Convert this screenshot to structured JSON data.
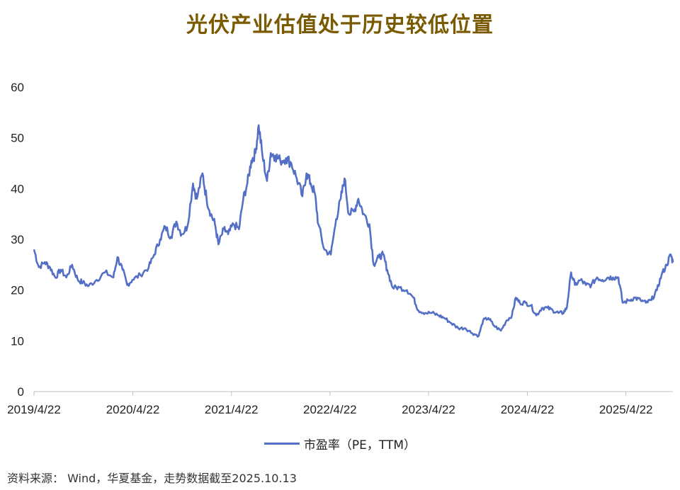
{
  "chart_data": {
    "type": "line",
    "title": "光伏产业估值处于历史较低位置",
    "xlabel": "",
    "ylabel": "",
    "ylim": [
      0,
      60
    ],
    "yticks": [
      0,
      10,
      20,
      30,
      40,
      50,
      60
    ],
    "xlim": [
      "2019-04-22",
      "2025-10-13"
    ],
    "xticks": [
      "2019/4/22",
      "2020/4/22",
      "2021/4/22",
      "2022/4/22",
      "2023/4/22",
      "2024/4/22",
      "2025/4/22"
    ],
    "grid": false,
    "legend": "bottom-center",
    "series": [
      {
        "name": "市盈率（PE，TTM）",
        "color": "#5470c6",
        "points": [
          [
            "2019-04-22",
            28
          ],
          [
            "2019-05-10",
            24.5
          ],
          [
            "2019-06-01",
            25.5
          ],
          [
            "2019-06-20",
            24.5
          ],
          [
            "2019-07-10",
            22.5
          ],
          [
            "2019-07-30",
            24
          ],
          [
            "2019-08-20",
            22.5
          ],
          [
            "2019-09-10",
            25
          ],
          [
            "2019-10-01",
            22
          ],
          [
            "2019-10-20",
            21.5
          ],
          [
            "2019-11-10",
            20.8
          ],
          [
            "2019-12-10",
            22
          ],
          [
            "2020-01-10",
            23.5
          ],
          [
            "2020-02-10",
            22.5
          ],
          [
            "2020-02-25",
            26.5
          ],
          [
            "2020-03-15",
            24
          ],
          [
            "2020-04-01",
            21
          ],
          [
            "2020-04-20",
            22
          ],
          [
            "2020-05-20",
            23
          ],
          [
            "2020-06-20",
            24.5
          ],
          [
            "2020-07-10",
            27
          ],
          [
            "2020-08-01",
            30
          ],
          [
            "2020-08-20",
            32.5
          ],
          [
            "2020-09-10",
            30.5
          ],
          [
            "2020-09-30",
            33.5
          ],
          [
            "2020-10-20",
            31
          ],
          [
            "2020-11-10",
            32.5
          ],
          [
            "2020-12-01",
            41
          ],
          [
            "2020-12-15",
            38
          ],
          [
            "2021-01-05",
            43
          ],
          [
            "2021-01-20",
            38
          ],
          [
            "2021-02-05",
            35
          ],
          [
            "2021-02-20",
            33
          ],
          [
            "2021-03-05",
            29
          ],
          [
            "2021-03-25",
            32
          ],
          [
            "2021-04-10",
            31
          ],
          [
            "2021-04-30",
            33
          ],
          [
            "2021-05-20",
            32
          ],
          [
            "2021-06-05",
            38
          ],
          [
            "2021-06-20",
            41
          ],
          [
            "2021-07-05",
            45.5
          ],
          [
            "2021-07-20",
            47
          ],
          [
            "2021-08-01",
            52.5
          ],
          [
            "2021-08-15",
            46.5
          ],
          [
            "2021-09-01",
            41.5
          ],
          [
            "2021-09-15",
            47
          ],
          [
            "2021-10-01",
            46.5
          ],
          [
            "2021-10-20",
            45.5
          ],
          [
            "2021-11-10",
            46
          ],
          [
            "2021-11-30",
            45
          ],
          [
            "2021-12-20",
            42
          ],
          [
            "2022-01-10",
            38.5
          ],
          [
            "2022-01-25",
            43
          ],
          [
            "2022-02-10",
            41
          ],
          [
            "2022-02-25",
            39
          ],
          [
            "2022-03-10",
            33
          ],
          [
            "2022-04-01",
            28
          ],
          [
            "2022-04-25",
            27
          ],
          [
            "2022-05-15",
            34
          ],
          [
            "2022-06-01",
            38
          ],
          [
            "2022-06-15",
            42
          ],
          [
            "2022-07-01",
            35
          ],
          [
            "2022-07-20",
            35.5
          ],
          [
            "2022-08-05",
            38
          ],
          [
            "2022-08-25",
            35
          ],
          [
            "2022-09-15",
            33
          ],
          [
            "2022-10-01",
            25
          ],
          [
            "2022-10-20",
            26.5
          ],
          [
            "2022-11-05",
            27
          ],
          [
            "2022-11-20",
            24
          ],
          [
            "2022-12-10",
            20.5
          ],
          [
            "2023-01-05",
            20.5
          ],
          [
            "2023-02-01",
            20
          ],
          [
            "2023-02-25",
            18.5
          ],
          [
            "2023-03-15",
            16
          ],
          [
            "2023-04-10",
            15.5
          ],
          [
            "2023-05-05",
            15.5
          ],
          [
            "2023-05-30",
            15
          ],
          [
            "2023-06-20",
            14.5
          ],
          [
            "2023-07-15",
            13.5
          ],
          [
            "2023-08-10",
            12.5
          ],
          [
            "2023-09-05",
            12.5
          ],
          [
            "2023-10-01",
            11.5
          ],
          [
            "2023-10-25",
            11
          ],
          [
            "2023-11-10",
            14
          ],
          [
            "2023-11-30",
            14.5
          ],
          [
            "2023-12-20",
            13
          ],
          [
            "2024-01-15",
            12
          ],
          [
            "2024-02-05",
            14
          ],
          [
            "2024-02-25",
            15
          ],
          [
            "2024-03-10",
            18.5
          ],
          [
            "2024-03-25",
            17.5
          ],
          [
            "2024-04-15",
            17.5
          ],
          [
            "2024-05-05",
            17
          ],
          [
            "2024-05-25",
            15
          ],
          [
            "2024-06-15",
            16.5
          ],
          [
            "2024-07-05",
            16.5
          ],
          [
            "2024-07-25",
            16
          ],
          [
            "2024-08-15",
            15.5
          ],
          [
            "2024-09-01",
            15.5
          ],
          [
            "2024-09-15",
            16.5
          ],
          [
            "2024-10-01",
            23.5
          ],
          [
            "2024-10-15",
            21
          ],
          [
            "2024-11-05",
            22
          ],
          [
            "2024-11-25",
            21
          ],
          [
            "2024-12-15",
            21
          ],
          [
            "2025-01-05",
            22.5
          ],
          [
            "2025-01-25",
            22
          ],
          [
            "2025-02-15",
            22.5
          ],
          [
            "2025-03-05",
            22.5
          ],
          [
            "2025-03-25",
            22.5
          ],
          [
            "2025-04-10",
            17.5
          ],
          [
            "2025-05-05",
            18
          ],
          [
            "2025-05-25",
            18.5
          ],
          [
            "2025-06-15",
            18
          ],
          [
            "2025-07-05",
            17.5
          ],
          [
            "2025-07-25",
            18
          ],
          [
            "2025-08-15",
            20
          ],
          [
            "2025-09-01",
            23
          ],
          [
            "2025-09-20",
            25
          ],
          [
            "2025-10-05",
            27
          ],
          [
            "2025-10-13",
            25.5
          ]
        ]
      }
    ]
  },
  "legend": {
    "label": "市盈率（PE，TTM）"
  },
  "source_note": "资料来源： Wind，华夏基金，走势数据截至2025.10.13"
}
